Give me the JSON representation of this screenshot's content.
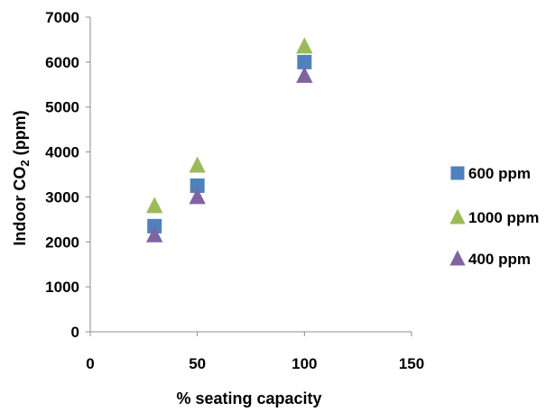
{
  "chart_data": {
    "type": "scatter",
    "xlabel": "% seating capacity",
    "ylabel": "Indoor CO2 (ppm)",
    "ylabel_main": "Indoor CO",
    "ylabel_sub": "2",
    "ylabel_unit": " (ppm)",
    "xlim": [
      0,
      150
    ],
    "ylim": [
      0,
      7000
    ],
    "xticks": [
      0,
      50,
      100,
      150
    ],
    "yticks": [
      0,
      1000,
      2000,
      3000,
      4000,
      5000,
      6000,
      7000
    ],
    "grid": false,
    "legend_position": "right",
    "series": [
      {
        "name": "600 ppm",
        "marker": "square",
        "color": "#4F81BD",
        "points": [
          [
            30,
            2350
          ],
          [
            50,
            3250
          ],
          [
            100,
            6000
          ]
        ]
      },
      {
        "name": "1000 ppm",
        "marker": "triangle",
        "color": "#9BBB59",
        "points": [
          [
            30,
            2800
          ],
          [
            50,
            3700
          ],
          [
            100,
            6350
          ]
        ]
      },
      {
        "name": "400 ppm",
        "marker": "triangle",
        "color": "#8064A2",
        "points": [
          [
            30,
            2150
          ],
          [
            50,
            3000
          ],
          [
            100,
            5700
          ]
        ]
      }
    ]
  }
}
